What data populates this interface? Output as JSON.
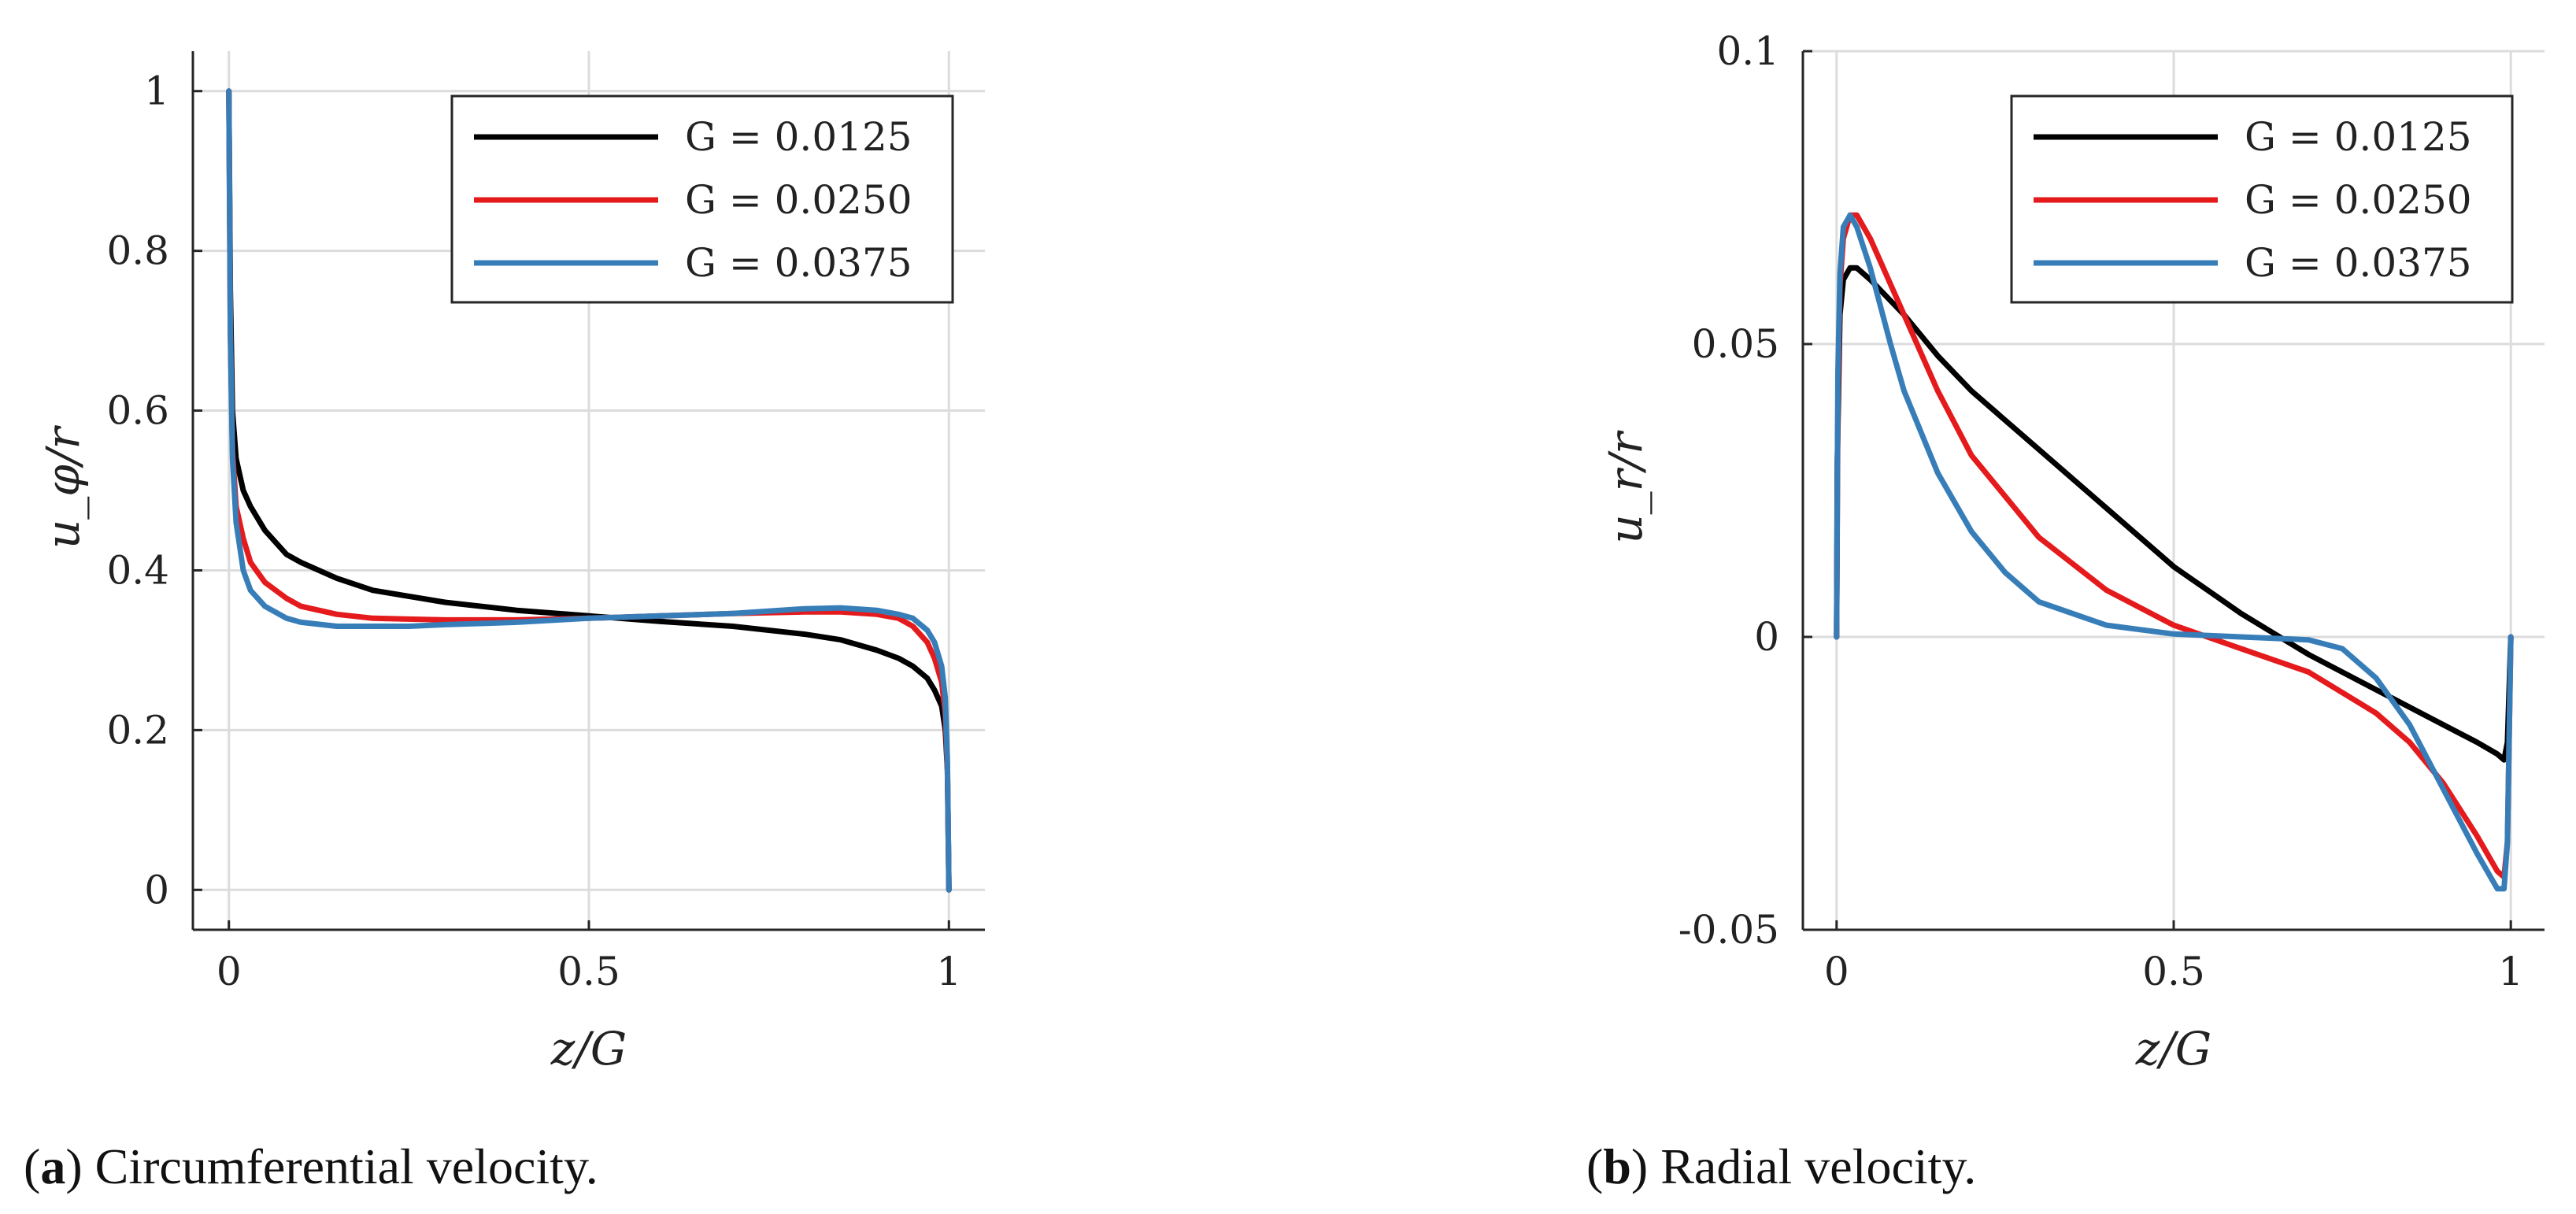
{
  "chart_data": [
    {
      "type": "line",
      "id": "a",
      "title": "",
      "xlabel": "z/G",
      "ylabel": "u_φ/r",
      "xlim": [
        -0.05,
        1.05
      ],
      "ylim": [
        -0.05,
        1.05
      ],
      "xticks": [
        0,
        0.5,
        1
      ],
      "xtick_labels": [
        "0",
        "0.5",
        "1"
      ],
      "yticks": [
        0,
        0.2,
        0.4,
        0.6,
        0.8,
        1
      ],
      "ytick_labels": [
        "0",
        "0.2",
        "0.4",
        "0.6",
        "0.8",
        "1"
      ],
      "grid": true,
      "legend_position": "top-right",
      "series": [
        {
          "name": "G = 0.0125",
          "color": "#000000",
          "x": [
            0,
            0.002,
            0.005,
            0.01,
            0.02,
            0.03,
            0.05,
            0.08,
            0.1,
            0.15,
            0.2,
            0.3,
            0.4,
            0.5,
            0.6,
            0.7,
            0.8,
            0.85,
            0.9,
            0.93,
            0.95,
            0.97,
            0.98,
            0.99,
            0.995,
            0.998,
            1.0
          ],
          "y": [
            1.0,
            0.75,
            0.6,
            0.54,
            0.5,
            0.48,
            0.45,
            0.42,
            0.41,
            0.39,
            0.375,
            0.36,
            0.35,
            0.343,
            0.336,
            0.33,
            0.32,
            0.313,
            0.3,
            0.29,
            0.28,
            0.265,
            0.25,
            0.23,
            0.2,
            0.15,
            0.0
          ]
        },
        {
          "name": "G = 0.0250",
          "color": "#e41a1c",
          "x": [
            0,
            0.002,
            0.005,
            0.01,
            0.02,
            0.03,
            0.05,
            0.08,
            0.1,
            0.15,
            0.2,
            0.3,
            0.4,
            0.5,
            0.6,
            0.7,
            0.8,
            0.85,
            0.9,
            0.93,
            0.95,
            0.97,
            0.98,
            0.99,
            0.995,
            0.998,
            1.0
          ],
          "y": [
            1.0,
            0.7,
            0.55,
            0.48,
            0.44,
            0.41,
            0.385,
            0.365,
            0.355,
            0.345,
            0.34,
            0.338,
            0.338,
            0.34,
            0.343,
            0.346,
            0.348,
            0.348,
            0.345,
            0.34,
            0.33,
            0.31,
            0.29,
            0.26,
            0.22,
            0.15,
            0.0
          ]
        },
        {
          "name": "G = 0.0375",
          "color": "#377eb8",
          "x": [
            0,
            0.002,
            0.005,
            0.01,
            0.02,
            0.03,
            0.05,
            0.08,
            0.1,
            0.15,
            0.2,
            0.25,
            0.3,
            0.4,
            0.5,
            0.6,
            0.7,
            0.8,
            0.85,
            0.9,
            0.93,
            0.95,
            0.97,
            0.98,
            0.99,
            0.995,
            0.998,
            1.0
          ],
          "y": [
            1.0,
            0.7,
            0.54,
            0.46,
            0.4,
            0.375,
            0.355,
            0.34,
            0.335,
            0.33,
            0.33,
            0.33,
            0.332,
            0.335,
            0.34,
            0.343,
            0.346,
            0.352,
            0.353,
            0.35,
            0.345,
            0.34,
            0.325,
            0.31,
            0.28,
            0.24,
            0.16,
            0.0
          ]
        }
      ],
      "legend": [
        "G = 0.0125",
        "G = 0.0250",
        "G = 0.0375"
      ]
    },
    {
      "type": "line",
      "id": "b",
      "title": "",
      "xlabel": "z/G",
      "ylabel": "u_r/r",
      "xlim": [
        -0.05,
        1.05
      ],
      "ylim": [
        -0.05,
        0.1
      ],
      "xticks": [
        0,
        0.5,
        1
      ],
      "xtick_labels": [
        "0",
        "0.5",
        "1"
      ],
      "yticks": [
        -0.05,
        0,
        0.05,
        0.1
      ],
      "ytick_labels": [
        "-0.05",
        "0",
        "0.05",
        "0.1"
      ],
      "grid": true,
      "legend_position": "top-right",
      "series": [
        {
          "name": "G = 0.0125",
          "color": "#000000",
          "x": [
            0,
            0.001,
            0.005,
            0.01,
            0.02,
            0.03,
            0.05,
            0.1,
            0.15,
            0.2,
            0.3,
            0.4,
            0.5,
            0.6,
            0.7,
            0.8,
            0.9,
            0.95,
            0.98,
            0.99,
            0.995,
            1.0
          ],
          "y": [
            0.0,
            0.03,
            0.055,
            0.061,
            0.063,
            0.063,
            0.061,
            0.055,
            0.048,
            0.042,
            0.032,
            0.022,
            0.012,
            0.004,
            -0.003,
            -0.009,
            -0.015,
            -0.018,
            -0.02,
            -0.021,
            -0.018,
            0.0
          ]
        },
        {
          "name": "G = 0.0250",
          "color": "#e41a1c",
          "x": [
            0,
            0.002,
            0.005,
            0.01,
            0.02,
            0.03,
            0.05,
            0.1,
            0.15,
            0.2,
            0.25,
            0.3,
            0.4,
            0.5,
            0.6,
            0.7,
            0.8,
            0.85,
            0.9,
            0.95,
            0.97,
            0.98,
            0.99,
            0.995,
            1.0
          ],
          "y": [
            0.0,
            0.04,
            0.06,
            0.068,
            0.072,
            0.072,
            0.068,
            0.055,
            0.042,
            0.031,
            0.024,
            0.017,
            0.008,
            0.002,
            -0.002,
            -0.006,
            -0.013,
            -0.018,
            -0.025,
            -0.034,
            -0.038,
            -0.04,
            -0.041,
            -0.035,
            0.0
          ]
        },
        {
          "name": "G = 0.0375",
          "color": "#377eb8",
          "x": [
            0,
            0.002,
            0.005,
            0.01,
            0.02,
            0.03,
            0.05,
            0.08,
            0.1,
            0.15,
            0.2,
            0.25,
            0.3,
            0.4,
            0.5,
            0.6,
            0.7,
            0.75,
            0.8,
            0.85,
            0.9,
            0.95,
            0.97,
            0.98,
            0.99,
            0.995,
            1.0
          ],
          "y": [
            0.0,
            0.045,
            0.062,
            0.07,
            0.072,
            0.07,
            0.063,
            0.05,
            0.042,
            0.028,
            0.018,
            0.011,
            0.006,
            0.002,
            0.0005,
            0.0,
            -0.0005,
            -0.002,
            -0.007,
            -0.015,
            -0.026,
            -0.037,
            -0.041,
            -0.043,
            -0.043,
            -0.035,
            0.0
          ]
        }
      ],
      "legend": [
        "G = 0.0125",
        "G = 0.0250",
        "G = 0.0375"
      ]
    }
  ],
  "captions": [
    {
      "label": "a",
      "text": "Circumferential velocity."
    },
    {
      "label": "b",
      "text": "Radial velocity."
    }
  ]
}
